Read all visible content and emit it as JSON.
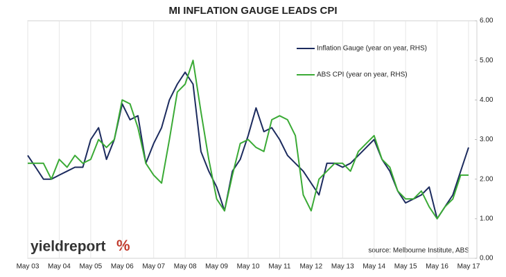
{
  "chart_data": {
    "type": "line",
    "title": "MI INFLATION GAUGE LEADS CPI",
    "source": "source: Melbourne Institute, ABS",
    "logo": {
      "text": "yieldreport",
      "symbol": "%"
    },
    "categories": [
      "May 03",
      null,
      null,
      null,
      "May 04",
      null,
      null,
      null,
      "May 05",
      null,
      null,
      null,
      "May 06",
      null,
      null,
      null,
      "May 07",
      null,
      null,
      null,
      "May 08",
      null,
      null,
      null,
      "May 09",
      null,
      null,
      null,
      "May 10",
      null,
      null,
      null,
      "May 11",
      null,
      null,
      null,
      "May 12",
      null,
      null,
      null,
      "May 13",
      null,
      null,
      null,
      "May 14",
      null,
      null,
      null,
      "May 15",
      null,
      null,
      null,
      "May 16",
      null,
      null,
      null,
      "May 17"
    ],
    "series": [
      {
        "name": "Inflation Gauge (year on year, RHS)",
        "color": "#1c2b5e",
        "axis": "y2",
        "values": [
          2.6,
          2.3,
          2.0,
          2.0,
          2.1,
          2.2,
          2.3,
          2.3,
          3.0,
          3.3,
          2.5,
          3.0,
          3.9,
          3.5,
          3.6,
          2.4,
          2.9,
          3.3,
          4.0,
          4.4,
          4.7,
          4.4,
          2.7,
          2.2,
          1.8,
          1.2,
          2.2,
          2.5,
          3.1,
          3.8,
          3.2,
          3.3,
          3.0,
          2.6,
          2.4,
          2.2,
          1.9,
          1.6,
          2.4,
          2.4,
          2.3,
          2.4,
          2.6,
          2.8,
          3.0,
          2.5,
          2.2,
          1.7,
          1.4,
          1.5,
          1.6,
          1.8,
          1.0,
          1.3,
          1.6,
          2.2,
          2.8
        ]
      },
      {
        "name": "ABS CPI (year on year, RHS)",
        "color": "#3aaa35",
        "axis": "y2",
        "values": [
          2.4,
          2.4,
          2.4,
          2.0,
          2.5,
          2.3,
          2.6,
          2.4,
          2.5,
          3.0,
          2.8,
          3.0,
          4.0,
          3.9,
          3.3,
          2.4,
          2.1,
          1.9,
          3.0,
          4.2,
          4.4,
          5.0,
          3.7,
          2.5,
          1.5,
          1.2,
          2.1,
          2.9,
          3.0,
          2.8,
          2.7,
          3.5,
          3.6,
          3.5,
          3.1,
          1.6,
          1.2,
          2.0,
          2.2,
          2.4,
          2.4,
          2.2,
          2.7,
          2.9,
          3.1,
          2.5,
          2.3,
          1.7,
          1.5,
          1.5,
          1.7,
          1.3,
          1.0,
          1.3,
          1.5,
          2.1,
          2.1
        ]
      }
    ],
    "y2lim": [
      0,
      6
    ],
    "y2ticks": [
      {
        "value": 0,
        "label": "0.00"
      },
      {
        "value": 1,
        "label": "1.00"
      },
      {
        "value": 2,
        "label": "2.00"
      },
      {
        "value": 3,
        "label": "3.00"
      },
      {
        "value": 4,
        "label": "4.00"
      },
      {
        "value": 5,
        "label": "5.00"
      },
      {
        "value": 6,
        "label": "6.00"
      }
    ],
    "grid": "x",
    "legend": "top-right"
  }
}
